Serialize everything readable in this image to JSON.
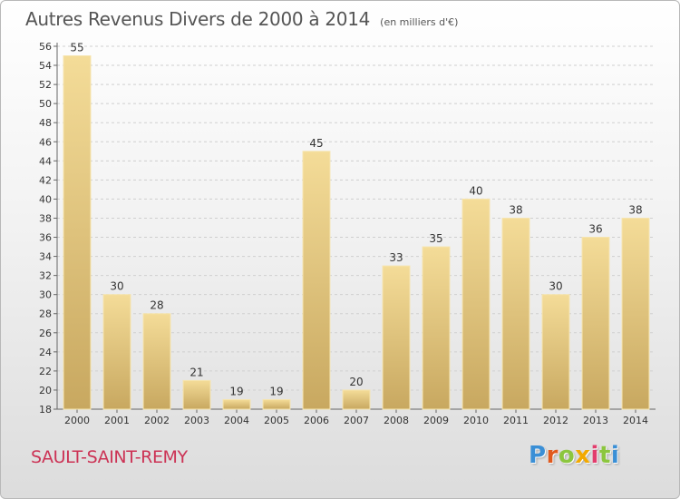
{
  "chart_data": {
    "type": "bar",
    "title": "Autres Revenus Divers de 2000 à 2014",
    "subtitle": "(en milliers d'€)",
    "categories": [
      "2000",
      "2001",
      "2002",
      "2003",
      "2004",
      "2005",
      "2006",
      "2007",
      "2008",
      "2009",
      "2010",
      "2011",
      "2012",
      "2013",
      "2014"
    ],
    "values": [
      55,
      30,
      28,
      21,
      19,
      19,
      45,
      20,
      33,
      35,
      40,
      38,
      30,
      36,
      38
    ],
    "ylim": [
      18,
      56
    ],
    "yticks": [
      18,
      20,
      22,
      24,
      26,
      28,
      30,
      32,
      34,
      36,
      38,
      40,
      42,
      44,
      46,
      48,
      50,
      52,
      54,
      56
    ],
    "grid": true,
    "bar_color": "#e8c878"
  },
  "footer": {
    "town": "SAULT-SAINT-REMY",
    "logo_letters": [
      "P",
      "r",
      "o",
      "x",
      "i",
      "t",
      "i"
    ],
    "logo_colors": [
      "#3a8fd6",
      "#e05a1e",
      "#8cc63f",
      "#f2a900",
      "#e23d6d",
      "#8cc63f",
      "#3a8fd6"
    ]
  }
}
